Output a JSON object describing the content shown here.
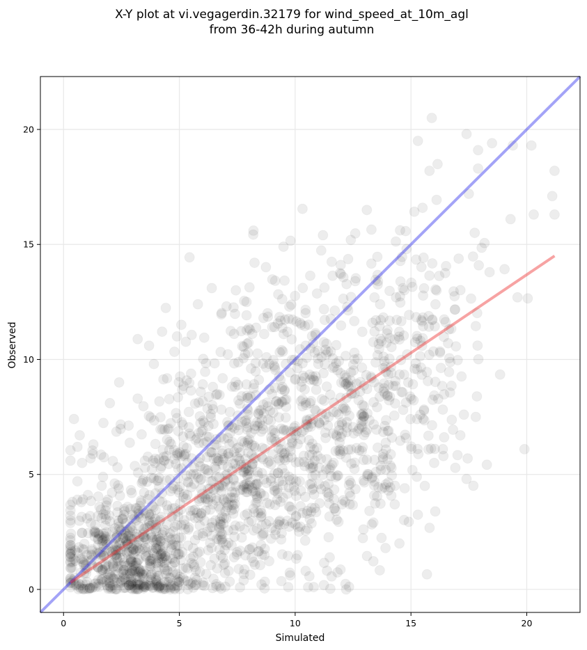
{
  "chart_data": {
    "type": "scatter",
    "title_line1": "X-Y plot at vi.vegagerdin.32179 for wind_speed_at_10m_agl",
    "title_line2": "from 36-42h during autumn",
    "xlabel": "Simulated",
    "ylabel": "Observed",
    "xlim": [
      -1.0,
      22.3
    ],
    "ylim": [
      -1.0,
      22.3
    ],
    "xticks": [
      0,
      5,
      10,
      15,
      20
    ],
    "yticks": [
      0,
      5,
      10,
      15,
      20
    ],
    "xtick_labels": [
      "0",
      "5",
      "10",
      "15",
      "20"
    ],
    "ytick_labels": [
      "0",
      "5",
      "10",
      "15",
      "20"
    ],
    "grid": true,
    "colors": {
      "points": "#000000",
      "identity_line": "#3333ee",
      "fit_line": "#ee3333",
      "grid": "#e8e8e8"
    },
    "identity_line": {
      "x": [
        -1.0,
        22.3
      ],
      "y": [
        -1.0,
        22.3
      ]
    },
    "fit_line": {
      "x": [
        0.3,
        21.2
      ],
      "y": [
        0.3,
        14.5
      ]
    },
    "notable_points": [
      {
        "x": 15.9,
        "y": 20.5
      },
      {
        "x": 17.4,
        "y": 19.8
      },
      {
        "x": 19.4,
        "y": 19.3
      },
      {
        "x": 20.2,
        "y": 19.3
      },
      {
        "x": 21.2,
        "y": 18.2
      },
      {
        "x": 21.1,
        "y": 17.1
      },
      {
        "x": 21.2,
        "y": 16.3
      },
      {
        "x": 20.3,
        "y": 16.3
      },
      {
        "x": 19.3,
        "y": 16.1
      },
      {
        "x": 19.6,
        "y": 12.7
      },
      {
        "x": 19.9,
        "y": 6.1
      },
      {
        "x": 17.8,
        "y": 7.5
      },
      {
        "x": 17.4,
        "y": 4.8
      },
      {
        "x": 15.3,
        "y": 19.5
      },
      {
        "x": 15.8,
        "y": 18.2
      },
      {
        "x": 18.5,
        "y": 19.4
      },
      {
        "x": 17.9,
        "y": 19.1
      },
      {
        "x": 17.9,
        "y": 18.3
      },
      {
        "x": 17.5,
        "y": 17.2
      },
      {
        "x": 8.2,
        "y": 15.6
      },
      {
        "x": 9.5,
        "y": 14.9
      },
      {
        "x": 6.4,
        "y": 13.1
      },
      {
        "x": 5.8,
        "y": 12.4
      },
      {
        "x": 3.9,
        "y": 9.8
      },
      {
        "x": 2.4,
        "y": 9.0
      },
      {
        "x": 2.0,
        "y": 8.1
      },
      {
        "x": 3.2,
        "y": 8.3
      },
      {
        "x": 4.9,
        "y": 11.0
      },
      {
        "x": 7.9,
        "y": 12.5
      },
      {
        "x": 11.2,
        "y": 15.4
      },
      {
        "x": 12.2,
        "y": 0.0
      },
      {
        "x": 10.8,
        "y": 0.1
      },
      {
        "x": 9.7,
        "y": 0.1
      },
      {
        "x": 0.7,
        "y": 6.7
      },
      {
        "x": 0.6,
        "y": 6.2
      },
      {
        "x": 0.6,
        "y": 4.7
      },
      {
        "x": 0.8,
        "y": 5.5
      },
      {
        "x": 0.6,
        "y": 3.9
      },
      {
        "x": 16.0,
        "y": 5.5
      },
      {
        "x": 16.4,
        "y": 5.8
      },
      {
        "x": 15.6,
        "y": 4.5
      },
      {
        "x": 14.5,
        "y": 2.0
      },
      {
        "x": 13.9,
        "y": 1.8
      },
      {
        "x": 14.3,
        "y": 3.7
      }
    ],
    "cloud_components": [
      {
        "n": 520,
        "cx": 2.6,
        "cy": 1.3,
        "sx": 1.5,
        "sy": 1.2
      },
      {
        "n": 560,
        "cx": 6.4,
        "cy": 4.2,
        "sx": 2.3,
        "sy": 2.4
      },
      {
        "n": 520,
        "cx": 10.3,
        "cy": 6.9,
        "sx": 2.5,
        "sy": 3.0
      },
      {
        "n": 260,
        "cx": 13.4,
        "cy": 9.4,
        "sx": 2.0,
        "sy": 3.0
      },
      {
        "n": 70,
        "cx": 16.3,
        "cy": 11.5,
        "sx": 1.4,
        "sy": 2.8
      }
    ]
  }
}
